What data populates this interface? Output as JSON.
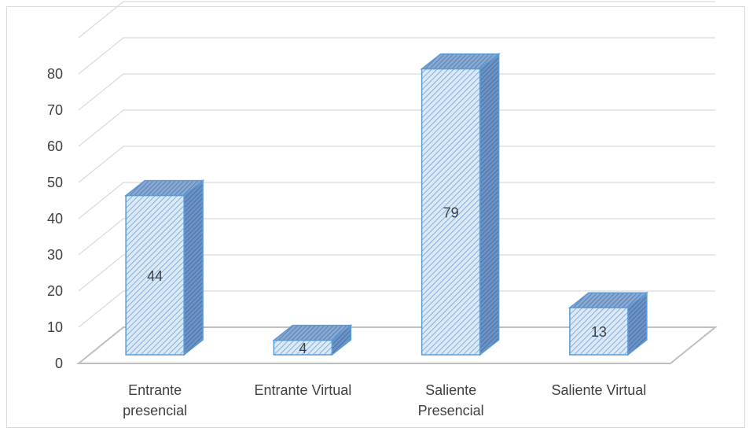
{
  "chart_data": {
    "type": "bar",
    "style": "3d-column",
    "categories": [
      [
        "Entrante",
        "presencial"
      ],
      [
        "Entrante Virtual"
      ],
      [
        "Saliente",
        "Presencial"
      ],
      [
        "Saliente Virtual"
      ]
    ],
    "values": [
      44,
      4,
      79,
      13
    ],
    "data_labels": [
      "44",
      "4",
      "79",
      "13"
    ],
    "yticks": [
      "0",
      "10",
      "20",
      "30",
      "40",
      "50",
      "60",
      "70",
      "80"
    ],
    "ylim": [
      0,
      80
    ],
    "title": "",
    "xlabel": "",
    "ylabel": "",
    "grid": true,
    "legend": "none",
    "colors": {
      "bar_front": "#dbe9f7",
      "bar_hatch": "#6f9fd8",
      "bar_side": "#5b87bf",
      "bar_top": "#7fa3cf",
      "bar_outline": "#5b9bd5",
      "grid": "#d9d9d9",
      "text": "#404040"
    }
  }
}
